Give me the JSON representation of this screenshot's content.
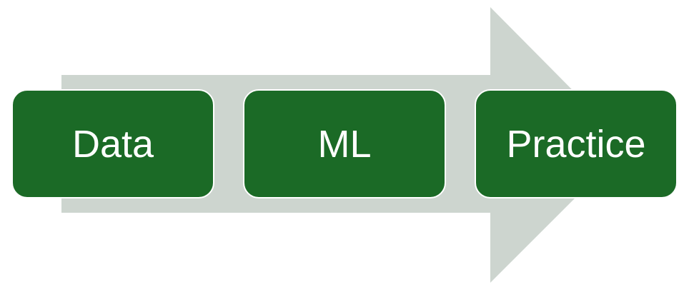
{
  "colors": {
    "arrow_fill": "#CDD5CF",
    "box_fill": "#1B6A26",
    "box_border": "#FFFFFF",
    "text": "#FFFFFF"
  },
  "steps": [
    {
      "label": "Data"
    },
    {
      "label": "ML"
    },
    {
      "label": "Practice"
    }
  ]
}
